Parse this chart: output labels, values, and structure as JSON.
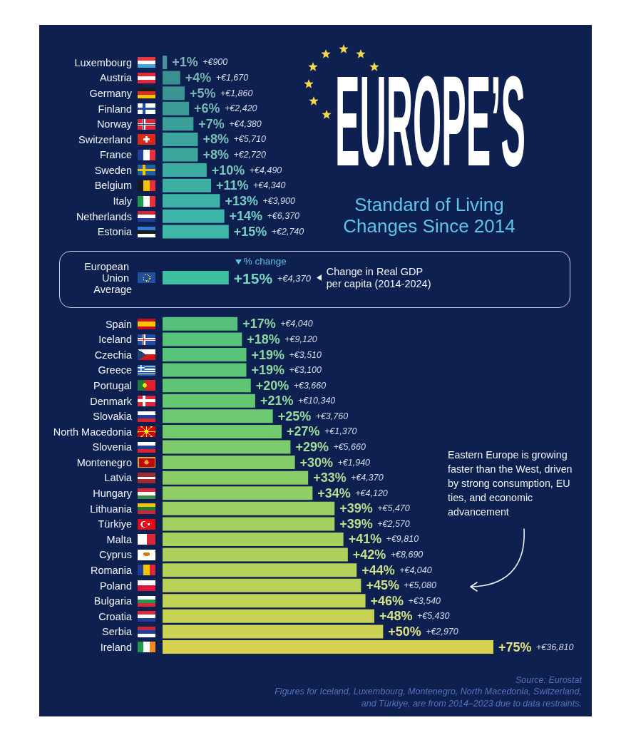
{
  "chart_data": {
    "type": "bar",
    "orientation": "horizontal",
    "title": "EUROPE’S",
    "subtitle": "Standard of Living Changes Since 2014",
    "tick_labels": "y",
    "categories": [
      "Luxembourg",
      "Austria",
      "Germany",
      "Finland",
      "Norway",
      "Switzerland",
      "France",
      "Sweden",
      "Belgium",
      "Italy",
      "Netherlands",
      "Estonia",
      null,
      null,
      "European Union Average",
      null,
      null,
      "Spain",
      "Iceland",
      "Czechia",
      "Greece",
      "Portugal",
      "Denmark",
      "Slovakia",
      "North Macedonia",
      "Slovenia",
      "Montenegro",
      "Latvia",
      "Hungary",
      "Lithuania",
      "Türkiye",
      "Malta",
      "Cyprus",
      "Romania",
      "Poland",
      "Bulgaria",
      "Croatia",
      "Serbia",
      "Ireland"
    ],
    "values": [
      1,
      4,
      5,
      6,
      7,
      8,
      8,
      10,
      11,
      13,
      14,
      15,
      null,
      null,
      15,
      null,
      null,
      17,
      18,
      19,
      19,
      20,
      21,
      25,
      27,
      29,
      30,
      33,
      34,
      39,
      39,
      41,
      42,
      44,
      45,
      46,
      48,
      50,
      75
    ],
    "colors": [
      "#4a8f99",
      "#3a8f90",
      "#3a9492",
      "#3a9a96",
      "#3b9f99",
      "#3ca49c",
      "#3ca69d",
      "#3caba0",
      "#3dafa3",
      "#3db2a6",
      "#3eb5a8",
      "#3fb8aa",
      null,
      null,
      "#3cc0a0",
      null,
      null,
      "#56c07c",
      "#58c27a",
      "#5ac478",
      "#5cc576",
      "#60c674",
      "#64c772",
      "#6cc970",
      "#74ca6e",
      "#7ccb6c",
      "#82cc6a",
      "#8acd68",
      "#90ce66",
      "#9ccf62",
      "#a2d060",
      "#a8d05e",
      "#aed15c",
      "#b4d15a",
      "#bad158",
      "#c0d256",
      "#c6d254",
      "#ccd252",
      "#d6d24e"
    ],
    "value_labels": [
      "+1% +€900",
      "+4% +€1,670",
      "+5% +€1,860",
      "+6% +€2,420",
      "+7% +€4,380",
      "+8% +€5,710",
      "+8% +€2,720",
      "+10% +€4,490",
      "+11% +€4,340",
      "+13% +€3,900",
      "+14% +€6,370",
      "+15% +€2,740",
      null,
      null,
      "+15% +€4,370",
      null,
      null,
      "+17% +€4,040",
      "+18% +€9,120",
      "+19% +€3,510",
      "+19% +€3,100",
      "+20% +€3,660",
      "+21% +€10,340",
      "+25% +€3,760",
      "+27% +€1,370",
      "+29% +€5,660",
      "+30% +€1,940",
      "+33% +€4,370",
      "+34% +€4,120",
      "+39% +€5,470",
      "+39% +€2,570",
      "+41% +€9,810",
      "+42% +€8,690",
      "+44% +€4,040",
      "+45% +€5,080",
      "+46% +€3,540",
      "+48% +€5,430",
      "+50% +€2,970",
      "+75% +€36,810"
    ],
    "annotations": [
      "% change",
      "Change in Real GDP per capita (2014-2024)",
      "Eastern Europe is growing faster than the West, driven by strong consumption, EU ties, and economic advancement",
      "Source: Eurostat",
      "Figures for Iceland, Luxembourg, Montenegro, North Macedonia, Switzerland, and Türkiye, are from 2014–2023 due to data restraints."
    ]
  }
}
